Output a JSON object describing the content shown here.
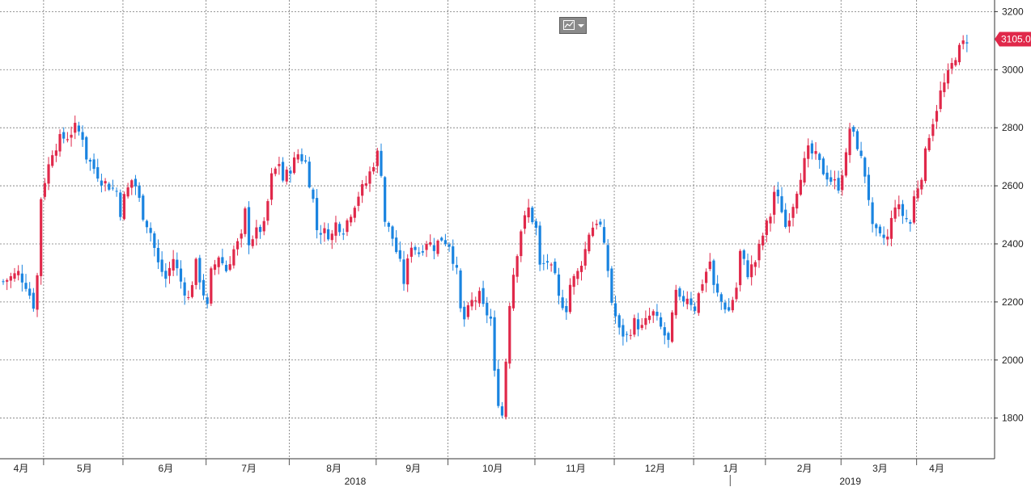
{
  "chart_data": {
    "type": "candlestick",
    "y_axis": {
      "position": "right",
      "range": [
        1660,
        3240
      ],
      "ticks": [
        1800,
        2000,
        2200,
        2400,
        2600,
        2800,
        3000,
        3200
      ]
    },
    "x_axis": {
      "months": [
        {
          "label": "4月",
          "index": 0
        },
        {
          "label": "5月",
          "index": 11
        },
        {
          "label": "6月",
          "index": 32
        },
        {
          "label": "7月",
          "index": 54
        },
        {
          "label": "8月",
          "index": 76
        },
        {
          "label": "9月",
          "index": 99
        },
        {
          "label": "10月",
          "index": 118
        },
        {
          "label": "11月",
          "index": 141
        },
        {
          "label": "12月",
          "index": 162
        },
        {
          "label": "1月",
          "index": 183
        },
        {
          "label": "2月",
          "index": 202
        },
        {
          "label": "3月",
          "index": 222
        },
        {
          "label": "4月",
          "index": 242
        }
      ],
      "years": [
        {
          "label": "2018",
          "index": 91
        },
        {
          "label": "2019",
          "index": 222
        }
      ],
      "year_divider_index": 193
    },
    "grid": true,
    "colors": {
      "up": "#e0284a",
      "down": "#1a84e0",
      "last_price_bg": "#e0284a"
    },
    "last_price": {
      "label": "3105.0",
      "value": 3105
    },
    "anchors": [
      [
        0,
        2270
      ],
      [
        4,
        2300
      ],
      [
        6,
        2260
      ],
      [
        8,
        2190
      ],
      [
        9,
        2290
      ],
      [
        10,
        2560
      ],
      [
        11,
        2620
      ],
      [
        13,
        2720
      ],
      [
        15,
        2760
      ],
      [
        17,
        2770
      ],
      [
        19,
        2800
      ],
      [
        21,
        2770
      ],
      [
        22,
        2700
      ],
      [
        24,
        2660
      ],
      [
        26,
        2620
      ],
      [
        28,
        2600
      ],
      [
        30,
        2580
      ],
      [
        31,
        2510
      ],
      [
        32,
        2560
      ],
      [
        34,
        2620
      ],
      [
        35,
        2600
      ],
      [
        37,
        2500
      ],
      [
        39,
        2440
      ],
      [
        41,
        2330
      ],
      [
        43,
        2280
      ],
      [
        45,
        2350
      ],
      [
        47,
        2270
      ],
      [
        49,
        2210
      ],
      [
        51,
        2330
      ],
      [
        53,
        2230
      ],
      [
        54,
        2180
      ],
      [
        55,
        2300
      ],
      [
        57,
        2360
      ],
      [
        59,
        2310
      ],
      [
        61,
        2380
      ],
      [
        63,
        2420
      ],
      [
        64,
        2510
      ],
      [
        65,
        2410
      ],
      [
        67,
        2440
      ],
      [
        69,
        2460
      ],
      [
        71,
        2630
      ],
      [
        73,
        2680
      ],
      [
        74,
        2620
      ],
      [
        76,
        2660
      ],
      [
        78,
        2710
      ],
      [
        80,
        2680
      ],
      [
        82,
        2550
      ],
      [
        83,
        2450
      ],
      [
        85,
        2440
      ],
      [
        87,
        2430
      ],
      [
        88,
        2470
      ],
      [
        90,
        2450
      ],
      [
        92,
        2510
      ],
      [
        94,
        2570
      ],
      [
        96,
        2610
      ],
      [
        98,
        2680
      ],
      [
        99,
        2710
      ],
      [
        100,
        2650
      ],
      [
        101,
        2480
      ],
      [
        103,
        2420
      ],
      [
        105,
        2330
      ],
      [
        106,
        2270
      ],
      [
        108,
        2400
      ],
      [
        110,
        2370
      ],
      [
        112,
        2410
      ],
      [
        114,
        2390
      ],
      [
        116,
        2420
      ],
      [
        118,
        2400
      ],
      [
        120,
        2300
      ],
      [
        121,
        2170
      ],
      [
        122,
        2140
      ],
      [
        124,
        2200
      ],
      [
        126,
        2220
      ],
      [
        127,
        2180
      ],
      [
        129,
        2140
      ],
      [
        130,
        1950
      ],
      [
        131,
        1860
      ],
      [
        132,
        1810
      ],
      [
        133,
        2000
      ],
      [
        134,
        2200
      ],
      [
        135,
        2300
      ],
      [
        137,
        2450
      ],
      [
        139,
        2520
      ],
      [
        141,
        2450
      ],
      [
        142,
        2320
      ],
      [
        144,
        2340
      ],
      [
        146,
        2280
      ],
      [
        147,
        2210
      ],
      [
        149,
        2180
      ],
      [
        150,
        2260
      ],
      [
        152,
        2300
      ],
      [
        154,
        2380
      ],
      [
        155,
        2440
      ],
      [
        157,
        2480
      ],
      [
        158,
        2460
      ],
      [
        160,
        2310
      ],
      [
        161,
        2200
      ],
      [
        163,
        2100
      ],
      [
        165,
        2080
      ],
      [
        167,
        2130
      ],
      [
        169,
        2110
      ],
      [
        171,
        2150
      ],
      [
        172,
        2160
      ],
      [
        174,
        2110
      ],
      [
        176,
        2060
      ],
      [
        178,
        2230
      ],
      [
        179,
        2200
      ],
      [
        181,
        2220
      ],
      [
        183,
        2180
      ],
      [
        185,
        2270
      ],
      [
        187,
        2340
      ],
      [
        188,
        2250
      ],
      [
        190,
        2200
      ],
      [
        192,
        2170
      ],
      [
        194,
        2250
      ],
      [
        195,
        2370
      ],
      [
        197,
        2300
      ],
      [
        199,
        2340
      ],
      [
        201,
        2430
      ],
      [
        203,
        2500
      ],
      [
        204,
        2580
      ],
      [
        206,
        2520
      ],
      [
        207,
        2460
      ],
      [
        209,
        2540
      ],
      [
        211,
        2640
      ],
      [
        213,
        2720
      ],
      [
        215,
        2700
      ],
      [
        217,
        2650
      ],
      [
        219,
        2620
      ],
      [
        221,
        2600
      ],
      [
        223,
        2700
      ],
      [
        224,
        2800
      ],
      [
        226,
        2740
      ],
      [
        228,
        2640
      ],
      [
        229,
        2560
      ],
      [
        230,
        2450
      ],
      [
        232,
        2420
      ],
      [
        234,
        2420
      ],
      [
        236,
        2540
      ],
      [
        238,
        2500
      ],
      [
        240,
        2470
      ],
      [
        241,
        2560
      ],
      [
        243,
        2640
      ],
      [
        245,
        2780
      ],
      [
        247,
        2870
      ],
      [
        248,
        2920
      ],
      [
        250,
        2980
      ],
      [
        252,
        3050
      ],
      [
        254,
        3090
      ],
      [
        255,
        3105
      ]
    ]
  }
}
